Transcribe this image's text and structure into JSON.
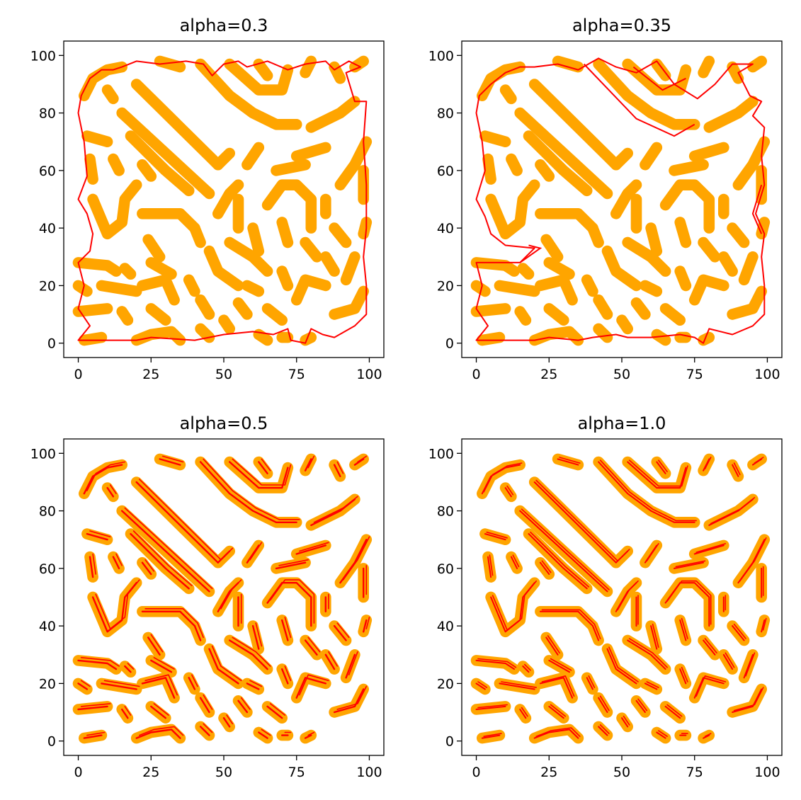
{
  "figure": {
    "background": "#ffffff",
    "pattern_color": "#ffa500",
    "hull_color": "#ff0000"
  },
  "chart_data": [
    {
      "type": "scatter",
      "title": "alpha=0.3",
      "xlim": [
        -5,
        105
      ],
      "ylim": [
        -5,
        105
      ],
      "xticks": [
        "0",
        "25",
        "50",
        "75",
        "100"
      ],
      "yticks": [
        "0",
        "20",
        "40",
        "60",
        "80",
        "100"
      ],
      "grid": false,
      "series": [
        {
          "values": "approximately 100x100 labyrinth point pattern (orange)"
        },
        {
          "values": "concave outline: single outer boundary, red"
        }
      ],
      "hull": [
        [
          0,
          1
        ],
        [
          10,
          1
        ],
        [
          20,
          1
        ],
        [
          25,
          2
        ],
        [
          40,
          1
        ],
        [
          50,
          3
        ],
        [
          60,
          4
        ],
        [
          67,
          3
        ],
        [
          72,
          5
        ],
        [
          73,
          1
        ],
        [
          78,
          0
        ],
        [
          80,
          5
        ],
        [
          84,
          3
        ],
        [
          88,
          2
        ],
        [
          95,
          6
        ],
        [
          99,
          10
        ],
        [
          99,
          20
        ],
        [
          98,
          30
        ],
        [
          99,
          40
        ],
        [
          99,
          55
        ],
        [
          98,
          70
        ],
        [
          99,
          84
        ],
        [
          95,
          84
        ],
        [
          92,
          94
        ],
        [
          97,
          96
        ],
        [
          93,
          98
        ],
        [
          88,
          95
        ],
        [
          85,
          98
        ],
        [
          78,
          97
        ],
        [
          72,
          95
        ],
        [
          65,
          98
        ],
        [
          58,
          96
        ],
        [
          55,
          98
        ],
        [
          50,
          97
        ],
        [
          46,
          93
        ],
        [
          43,
          97
        ],
        [
          37,
          98
        ],
        [
          28,
          97
        ],
        [
          20,
          98
        ],
        [
          15,
          96
        ],
        [
          12,
          95
        ],
        [
          8,
          95
        ],
        [
          4,
          92
        ],
        [
          1,
          86
        ],
        [
          0,
          80
        ],
        [
          2,
          70
        ],
        [
          3,
          58
        ],
        [
          0,
          50
        ],
        [
          3,
          45
        ],
        [
          5,
          38
        ],
        [
          4,
          32
        ],
        [
          0,
          28
        ],
        [
          2,
          20
        ],
        [
          0,
          12
        ],
        [
          4,
          6
        ],
        [
          0,
          1
        ]
      ]
    },
    {
      "type": "scatter",
      "title": "alpha=0.35",
      "xlim": [
        -5,
        105
      ],
      "ylim": [
        -5,
        105
      ],
      "xticks": [
        "0",
        "25",
        "50",
        "75",
        "100"
      ],
      "yticks": [
        "0",
        "20",
        "40",
        "60",
        "80",
        "100"
      ],
      "grid": false,
      "series": [
        {
          "values": "approximately 100x100 labyrinth point pattern (orange)"
        },
        {
          "values": "concave outline: outer boundary with inlets, red"
        }
      ],
      "hull": [
        [
          0,
          1
        ],
        [
          10,
          1
        ],
        [
          20,
          1
        ],
        [
          25,
          2
        ],
        [
          35,
          1
        ],
        [
          40,
          2
        ],
        [
          48,
          3
        ],
        [
          52,
          2
        ],
        [
          60,
          2
        ],
        [
          70,
          3
        ],
        [
          75,
          2
        ],
        [
          78,
          0
        ],
        [
          80,
          5
        ],
        [
          88,
          3
        ],
        [
          95,
          6
        ],
        [
          99,
          10
        ],
        [
          99,
          20
        ],
        [
          98,
          30
        ],
        [
          99,
          38
        ],
        [
          96,
          45
        ],
        [
          99,
          55
        ],
        [
          98,
          65
        ],
        [
          99,
          75
        ],
        [
          95,
          79
        ],
        [
          98,
          84
        ],
        [
          94,
          86
        ],
        [
          90,
          94
        ],
        [
          95,
          97
        ],
        [
          88,
          97
        ],
        [
          82,
          90
        ],
        [
          76,
          85
        ],
        [
          68,
          90
        ],
        [
          62,
          98
        ],
        [
          55,
          94
        ],
        [
          48,
          96
        ],
        [
          42,
          99
        ],
        [
          35,
          95
        ],
        [
          28,
          97
        ],
        [
          20,
          96
        ],
        [
          15,
          96
        ],
        [
          10,
          94
        ],
        [
          5,
          90
        ],
        [
          1,
          86
        ],
        [
          0,
          80
        ],
        [
          2,
          70
        ],
        [
          3,
          60
        ],
        [
          0,
          50
        ],
        [
          3,
          44
        ],
        [
          5,
          38
        ],
        [
          10,
          34
        ],
        [
          20,
          33
        ],
        [
          15,
          28
        ],
        [
          0,
          28
        ],
        [
          2,
          20
        ],
        [
          0,
          12
        ],
        [
          4,
          6
        ],
        [
          0,
          1
        ]
      ]
    },
    {
      "type": "scatter",
      "title": "alpha=0.5",
      "xlim": [
        -5,
        105
      ],
      "ylim": [
        -5,
        105
      ],
      "xticks": [
        "0",
        "25",
        "50",
        "75",
        "100"
      ],
      "yticks": [
        "0",
        "20",
        "40",
        "60",
        "80",
        "100"
      ],
      "grid": false,
      "series": [
        {
          "values": "approximately 100x100 labyrinth point pattern (orange)"
        },
        {
          "values": "concave outlines around each stripe, red"
        }
      ]
    },
    {
      "type": "scatter",
      "title": "alpha=1.0",
      "xlim": [
        -5,
        105
      ],
      "ylim": [
        -5,
        105
      ],
      "xticks": [
        "0",
        "25",
        "50",
        "75",
        "100"
      ],
      "yticks": [
        "0",
        "20",
        "40",
        "60",
        "80",
        "100"
      ],
      "grid": false,
      "series": [
        {
          "values": "approximately 100x100 labyrinth point pattern (orange)"
        },
        {
          "values": "tight outlines around each stripe, red"
        }
      ]
    }
  ],
  "pattern_strokes": [
    [
      [
        2,
        86
      ],
      [
        5,
        92
      ],
      [
        10,
        95
      ],
      [
        15,
        96
      ]
    ],
    [
      [
        28,
        98
      ],
      [
        35,
        96
      ]
    ],
    [
      [
        42,
        97
      ],
      [
        52,
        86
      ],
      [
        60,
        80
      ],
      [
        68,
        76
      ],
      [
        75,
        76
      ]
    ],
    [
      [
        52,
        97
      ],
      [
        62,
        88
      ],
      [
        70,
        88
      ],
      [
        72,
        95
      ]
    ],
    [
      [
        62,
        97
      ],
      [
        65,
        93
      ]
    ],
    [
      [
        80,
        98
      ],
      [
        78,
        94
      ]
    ],
    [
      [
        88,
        96
      ],
      [
        90,
        92
      ]
    ],
    [
      [
        95,
        96
      ],
      [
        98,
        98
      ]
    ],
    [
      [
        10,
        88
      ],
      [
        12,
        85
      ]
    ],
    [
      [
        20,
        90
      ],
      [
        45,
        65
      ],
      [
        48,
        62
      ]
    ],
    [
      [
        15,
        80
      ],
      [
        45,
        52
      ]
    ],
    [
      [
        18,
        72
      ],
      [
        30,
        60
      ],
      [
        38,
        53
      ]
    ],
    [
      [
        3,
        72
      ],
      [
        10,
        70
      ]
    ],
    [
      [
        4,
        64
      ],
      [
        5,
        57
      ]
    ],
    [
      [
        12,
        64
      ],
      [
        14,
        60
      ]
    ],
    [
      [
        22,
        62
      ],
      [
        25,
        58
      ]
    ],
    [
      [
        5,
        50
      ],
      [
        10,
        38
      ],
      [
        15,
        42
      ],
      [
        16,
        50
      ],
      [
        20,
        55
      ]
    ],
    [
      [
        22,
        45
      ],
      [
        35,
        45
      ],
      [
        40,
        40
      ]
    ],
    [
      [
        24,
        36
      ],
      [
        28,
        30
      ]
    ],
    [
      [
        0,
        28
      ],
      [
        10,
        27
      ],
      [
        13,
        25
      ]
    ],
    [
      [
        16,
        26
      ],
      [
        18,
        24
      ]
    ],
    [
      [
        25,
        28
      ],
      [
        32,
        24
      ]
    ],
    [
      [
        0,
        20
      ],
      [
        3,
        18
      ]
    ],
    [
      [
        8,
        20
      ],
      [
        20,
        18
      ]
    ],
    [
      [
        0,
        11
      ],
      [
        10,
        12
      ]
    ],
    [
      [
        15,
        11
      ],
      [
        17,
        8
      ]
    ],
    [
      [
        22,
        20
      ],
      [
        30,
        22
      ],
      [
        33,
        15
      ]
    ],
    [
      [
        25,
        12
      ],
      [
        30,
        8
      ]
    ],
    [
      [
        2,
        1
      ],
      [
        8,
        2
      ]
    ],
    [
      [
        20,
        1
      ],
      [
        25,
        3
      ],
      [
        32,
        4
      ],
      [
        35,
        1
      ]
    ],
    [
      [
        42,
        5
      ],
      [
        45,
        2
      ]
    ],
    [
      [
        50,
        8
      ],
      [
        52,
        5
      ]
    ],
    [
      [
        55,
        14
      ],
      [
        58,
        10
      ]
    ],
    [
      [
        62,
        3
      ],
      [
        65,
        1
      ]
    ],
    [
      [
        70,
        2
      ],
      [
        72,
        2
      ]
    ],
    [
      [
        78,
        1
      ],
      [
        80,
        2
      ]
    ],
    [
      [
        75,
        15
      ],
      [
        78,
        22
      ],
      [
        85,
        20
      ]
    ],
    [
      [
        88,
        10
      ],
      [
        95,
        12
      ],
      [
        98,
        18
      ]
    ],
    [
      [
        92,
        22
      ],
      [
        95,
        30
      ]
    ],
    [
      [
        98,
        38
      ],
      [
        99,
        42
      ]
    ],
    [
      [
        98,
        50
      ],
      [
        98,
        60
      ]
    ],
    [
      [
        90,
        55
      ],
      [
        95,
        62
      ],
      [
        99,
        70
      ]
    ],
    [
      [
        85,
        50
      ],
      [
        85,
        45
      ]
    ],
    [
      [
        80,
        75
      ],
      [
        90,
        80
      ],
      [
        95,
        84
      ]
    ],
    [
      [
        75,
        65
      ],
      [
        85,
        68
      ]
    ],
    [
      [
        68,
        60
      ],
      [
        78,
        62
      ]
    ],
    [
      [
        65,
        48
      ],
      [
        70,
        55
      ],
      [
        75,
        55
      ],
      [
        80,
        50
      ],
      [
        80,
        40
      ]
    ],
    [
      [
        70,
        42
      ],
      [
        72,
        35
      ]
    ],
    [
      [
        60,
        40
      ],
      [
        62,
        32
      ]
    ],
    [
      [
        55,
        50
      ],
      [
        55,
        40
      ]
    ],
    [
      [
        52,
        35
      ],
      [
        60,
        30
      ],
      [
        65,
        25
      ]
    ],
    [
      [
        45,
        32
      ],
      [
        48,
        25
      ],
      [
        55,
        20
      ]
    ],
    [
      [
        42,
        15
      ],
      [
        45,
        10
      ]
    ],
    [
      [
        40,
        40
      ],
      [
        42,
        35
      ]
    ],
    [
      [
        48,
        45
      ],
      [
        52,
        52
      ],
      [
        55,
        55
      ]
    ],
    [
      [
        48,
        62
      ],
      [
        52,
        66
      ]
    ],
    [
      [
        58,
        62
      ],
      [
        62,
        68
      ]
    ],
    [
      [
        70,
        25
      ],
      [
        72,
        20
      ]
    ],
    [
      [
        78,
        35
      ],
      [
        82,
        30
      ]
    ],
    [
      [
        88,
        40
      ],
      [
        92,
        35
      ]
    ],
    [
      [
        85,
        30
      ],
      [
        88,
        25
      ]
    ],
    [
      [
        65,
        12
      ],
      [
        70,
        8
      ]
    ],
    [
      [
        38,
        22
      ],
      [
        40,
        18
      ]
    ],
    [
      [
        58,
        20
      ],
      [
        62,
        18
      ]
    ]
  ]
}
